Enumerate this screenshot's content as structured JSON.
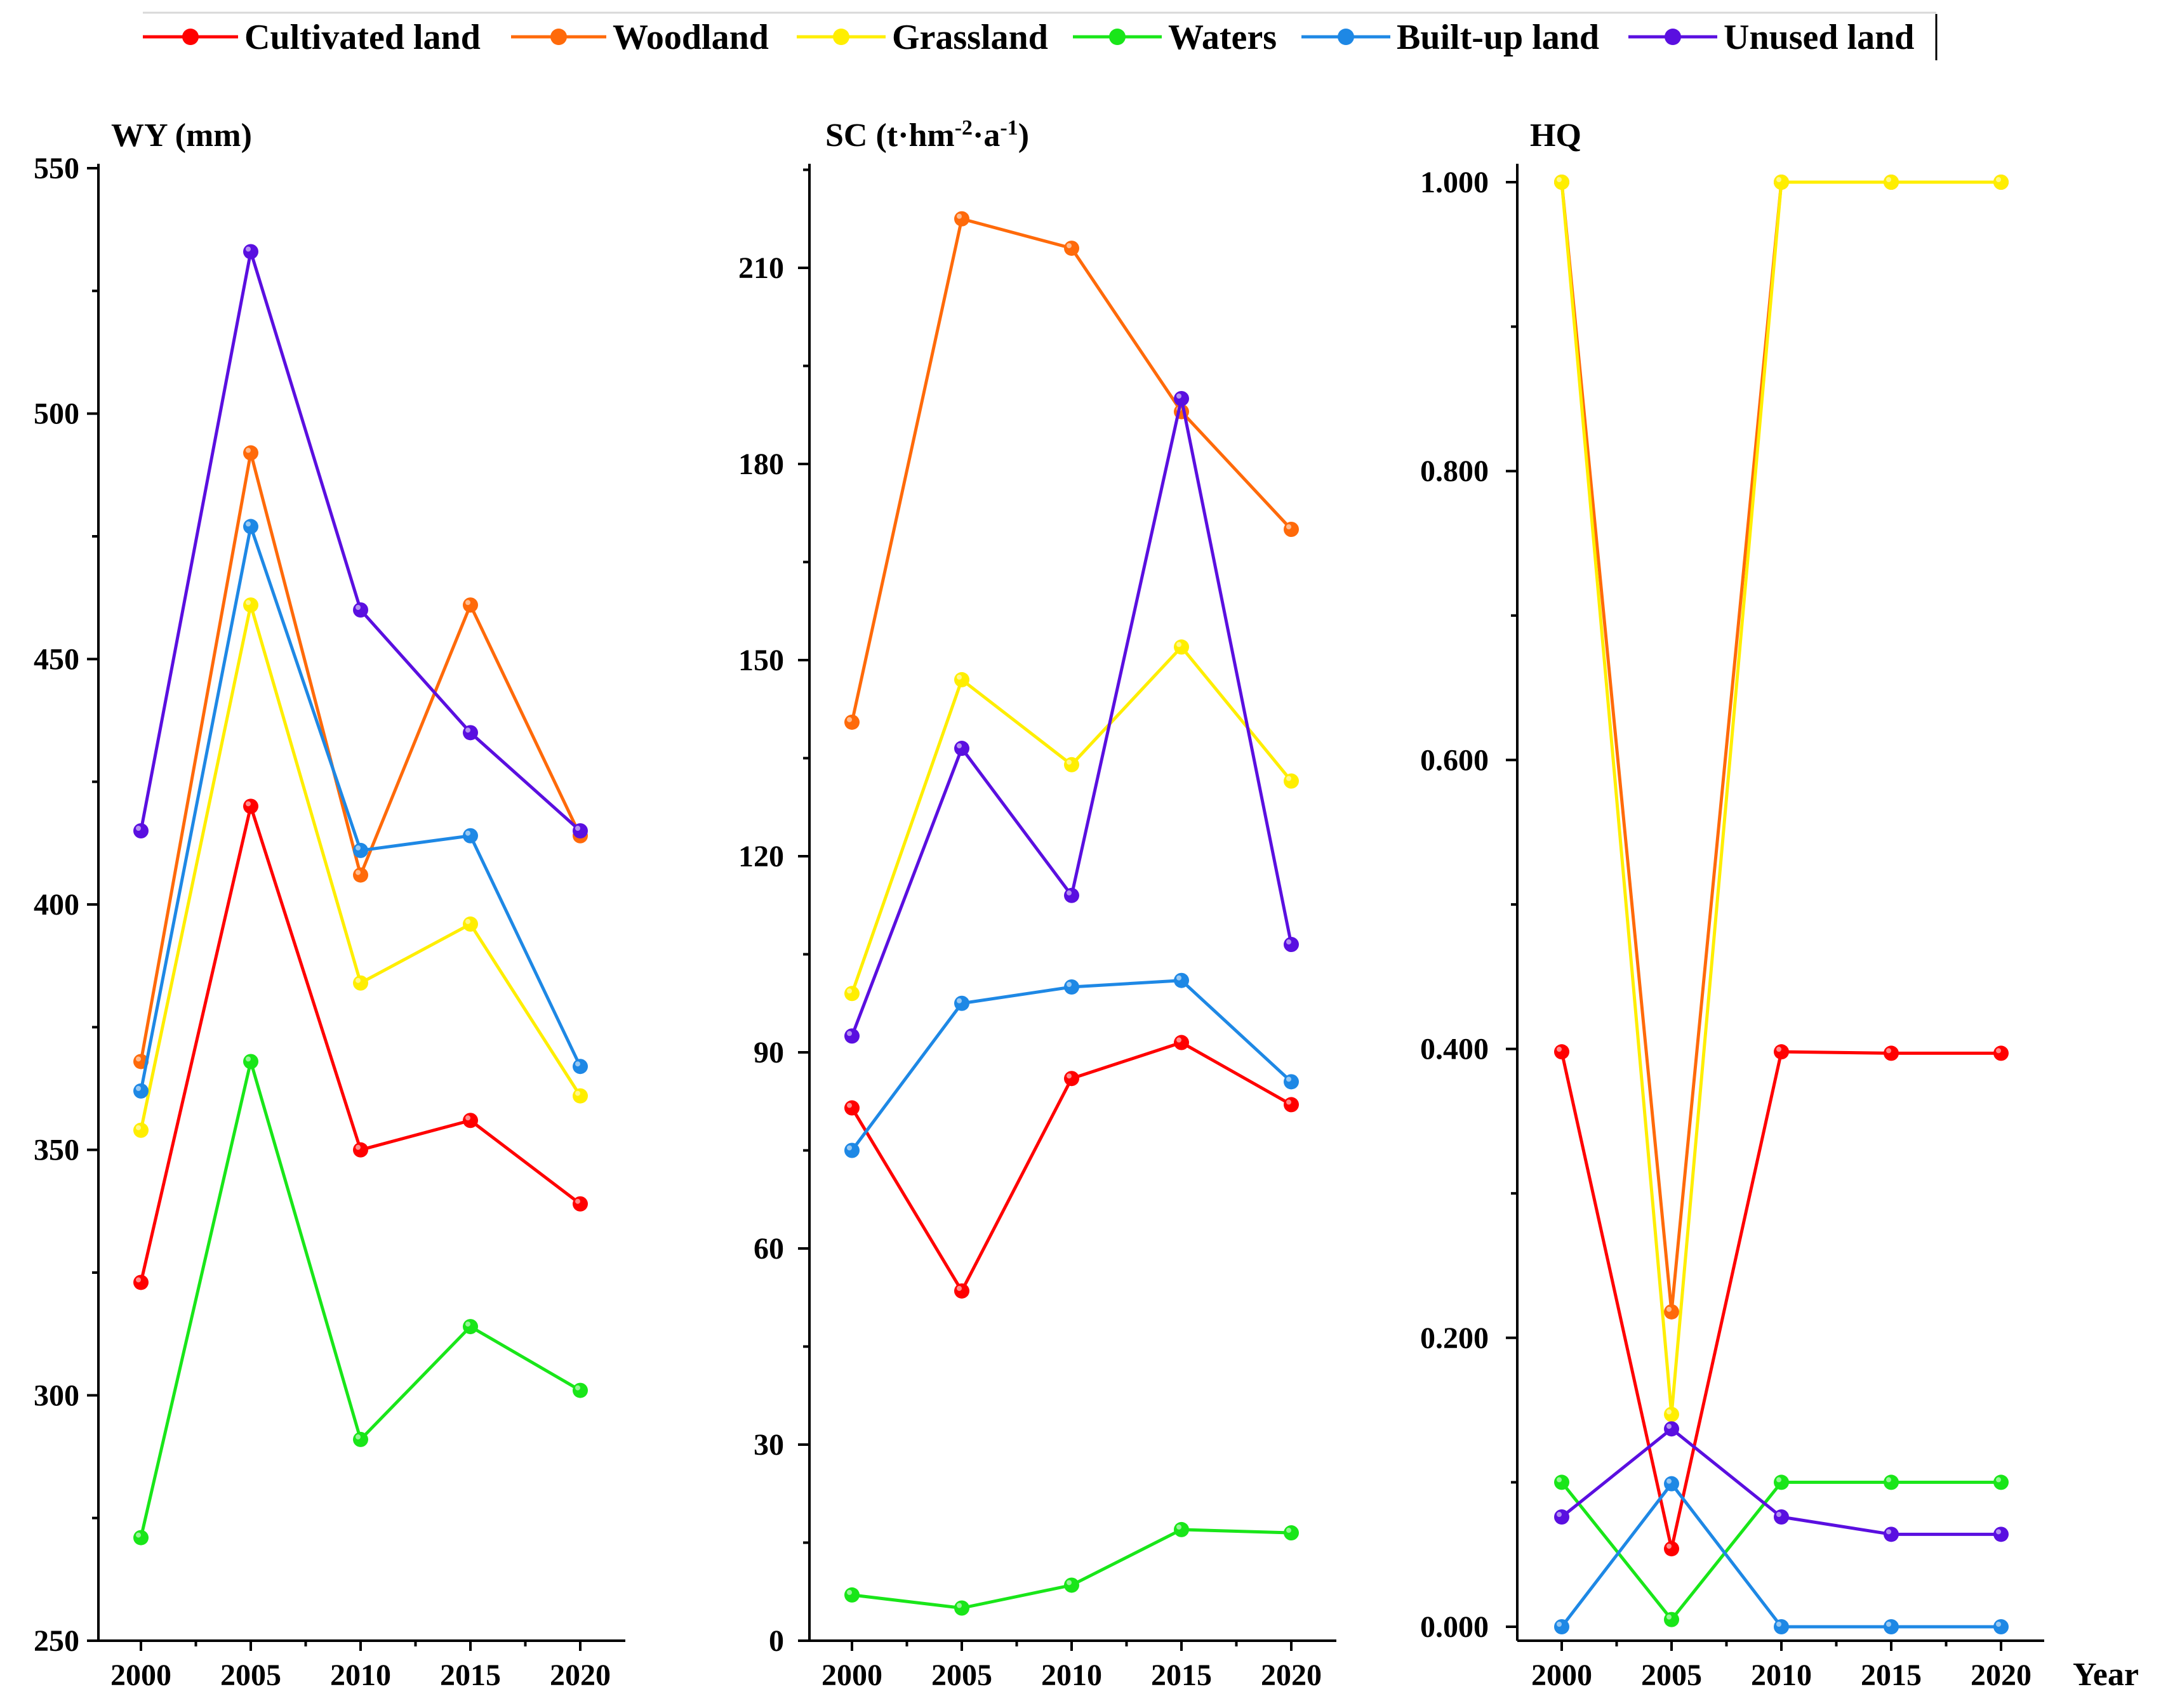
{
  "legend": [
    {
      "name": "Cultivated land",
      "color": "#ff0000"
    },
    {
      "name": "Woodland",
      "color": "#ff6a0a"
    },
    {
      "name": "Grassland",
      "color": "#ffee00"
    },
    {
      "name": "Waters",
      "color": "#19e619"
    },
    {
      "name": "Built-up land",
      "color": "#1e88e5"
    },
    {
      "name": "Unused land",
      "color": "#5a0fe0"
    }
  ],
  "x_axis_title": "Year",
  "chart_data": [
    {
      "type": "line",
      "title": "WY (mm)",
      "x": [
        "2000",
        "2005",
        "2010",
        "2015",
        "2020"
      ],
      "ylim": [
        250,
        550
      ],
      "yticks": [
        "250",
        "300",
        "350",
        "400",
        "450",
        "500",
        "550"
      ],
      "series": [
        {
          "name": "Cultivated land",
          "values": [
            323,
            420,
            350,
            356,
            339
          ]
        },
        {
          "name": "Woodland",
          "values": [
            368,
            492,
            406,
            461,
            414
          ]
        },
        {
          "name": "Grassland",
          "values": [
            354,
            461,
            384,
            396,
            361
          ]
        },
        {
          "name": "Waters",
          "values": [
            271,
            368,
            291,
            314,
            301
          ]
        },
        {
          "name": "Built-up land",
          "values": [
            362,
            477,
            411,
            414,
            367
          ]
        },
        {
          "name": "Unused land",
          "values": [
            415,
            533,
            460,
            435,
            415
          ]
        }
      ]
    },
    {
      "type": "line",
      "title": "SC (t·hm-2·a-1)",
      "title_parts": {
        "base1": "SC (t·hm",
        "sup1": "-2",
        "base2": "·a",
        "sup2": "-1",
        "base3": ")"
      },
      "x": [
        "2000",
        "2005",
        "2010",
        "2015",
        "2020"
      ],
      "ylim": [
        0,
        225
      ],
      "yticks": [
        "0",
        "30",
        "60",
        "90",
        "120",
        "150",
        "180",
        "210"
      ],
      "series": [
        {
          "name": "Cultivated land",
          "values": [
            81.5,
            53.5,
            86,
            91.5,
            82
          ]
        },
        {
          "name": "Woodland",
          "values": [
            140.5,
            217.5,
            213,
            188,
            170
          ]
        },
        {
          "name": "Grassland",
          "values": [
            99,
            147,
            134,
            152,
            131.5
          ]
        },
        {
          "name": "Waters",
          "values": [
            7,
            5,
            8.5,
            17,
            16.5
          ]
        },
        {
          "name": "Built-up land",
          "values": [
            75,
            97.5,
            100,
            101,
            85.5
          ]
        },
        {
          "name": "Unused land",
          "values": [
            92.5,
            136.5,
            114,
            190,
            106.5
          ]
        }
      ]
    },
    {
      "type": "line",
      "title": "HQ",
      "x": [
        "2000",
        "2005",
        "2010",
        "2015",
        "2020"
      ],
      "ylim": [
        0,
        1.02
      ],
      "yticks": [
        "0.000",
        "0.200",
        "0.400",
        "0.600",
        "0.800",
        "1.000"
      ],
      "series": [
        {
          "name": "Cultivated land",
          "values": [
            0.398,
            0.054,
            0.398,
            0.397,
            0.397
          ]
        },
        {
          "name": "Woodland",
          "values": [
            1.0,
            0.218,
            1.0,
            1.0,
            1.0
          ]
        },
        {
          "name": "Grassland",
          "values": [
            1.0,
            0.147,
            1.0,
            1.0,
            1.0
          ]
        },
        {
          "name": "Waters",
          "values": [
            0.1,
            0.005,
            0.1,
            0.1,
            0.1
          ]
        },
        {
          "name": "Built-up land",
          "values": [
            0.0,
            0.099,
            0.0,
            0.0,
            0.0
          ]
        },
        {
          "name": "Unused land",
          "values": [
            0.076,
            0.137,
            0.076,
            0.064,
            0.064
          ]
        }
      ]
    }
  ]
}
